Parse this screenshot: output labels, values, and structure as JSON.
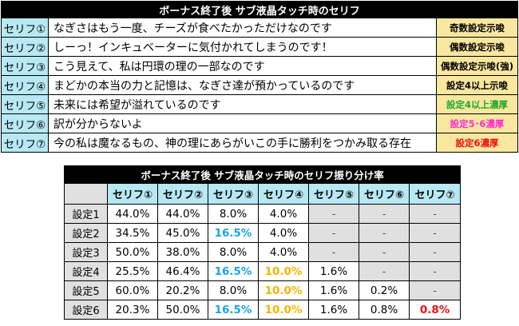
{
  "serif_table": {
    "title": "ボーナス終了後 サブ液晶タッチ時のセリフ",
    "rows": [
      {
        "label": "セリフ①",
        "text": "なぎさはもう一度、チーズが食べたかっただけなのです",
        "result": "奇数設定示唆",
        "result_color": "#000000"
      },
      {
        "label": "セリフ②",
        "text": "しーっ！インキュベーターに気付かれてしまうのです！",
        "result": "偶数設定示唆",
        "result_color": "#000000"
      },
      {
        "label": "セリフ③",
        "text": "こう見えて、私は円環の理の一部なのです",
        "result": "偶数設定示唆(強)",
        "result_color": "#000000"
      },
      {
        "label": "セリフ④",
        "text": "まどかの本当の力と記憶は、なぎさ達が預かっているのです",
        "result": "設定4以上示唆",
        "result_color": "#000000"
      },
      {
        "label": "セリフ⑤",
        "text": "未来には希望が溢れているのです",
        "result": "設定4以上濃厚",
        "result_color": "#22a832"
      },
      {
        "label": "セリフ⑥",
        "text": "訳が分からないよ",
        "result": "設定5･6濃厚",
        "result_color": "#ff2bd0"
      },
      {
        "label": "セリフ⑦",
        "text": "今の私は魔なるもの、神の理にあらがいこの手に勝利をつかみ取る存在",
        "result": "設定6濃厚",
        "result_color": "#ee1111"
      }
    ]
  },
  "rate_table": {
    "title": "ボーナス終了後 サブ液晶タッチ時のセリフ振り分け率",
    "columns": [
      "セリフ①",
      "セリフ②",
      "セリフ③",
      "セリフ④",
      "セリフ⑤",
      "セリフ⑥",
      "セリフ⑦"
    ],
    "rows": [
      {
        "label": "設定1",
        "values": [
          "44.0%",
          "44.0%",
          "8.0%",
          "4.0%",
          "-",
          "-",
          "-"
        ]
      },
      {
        "label": "設定2",
        "values": [
          "34.5%",
          "45.0%",
          "16.5%",
          "4.0%",
          "-",
          "-",
          "-"
        ]
      },
      {
        "label": "設定3",
        "values": [
          "50.0%",
          "38.0%",
          "8.0%",
          "4.0%",
          "-",
          "-",
          "-"
        ]
      },
      {
        "label": "設定4",
        "values": [
          "25.5%",
          "46.4%",
          "16.5%",
          "10.0%",
          "1.6%",
          "-",
          "-"
        ]
      },
      {
        "label": "設定5",
        "values": [
          "60.0%",
          "20.2%",
          "8.0%",
          "10.0%",
          "1.6%",
          "0.2%",
          "-"
        ]
      },
      {
        "label": "設定6",
        "values": [
          "20.3%",
          "50.0%",
          "16.5%",
          "10.0%",
          "1.6%",
          "0.8%",
          "0.8%"
        ]
      }
    ],
    "highlight_colors": {
      "blue": "#1aa3e8",
      "orange": "#f5b400",
      "red": "#ee1111"
    }
  }
}
